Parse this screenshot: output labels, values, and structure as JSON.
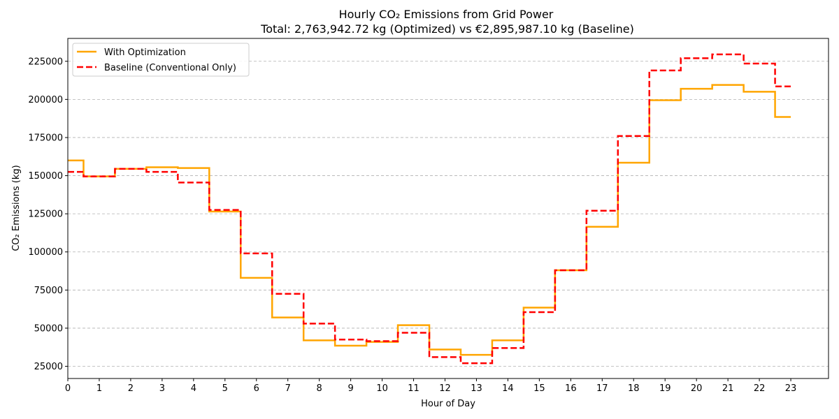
{
  "chart_data": {
    "type": "line",
    "title": "Hourly CO₂ Emissions from Grid Power",
    "subtitle": "Total: 2,763,942.72 kg (Optimized) vs €2,895,987.10 kg (Baseline)",
    "xlabel": "Hour of Day",
    "ylabel": "CO₂ Emissions (kg)",
    "x": [
      0,
      1,
      2,
      3,
      4,
      5,
      6,
      7,
      8,
      9,
      10,
      11,
      12,
      13,
      14,
      15,
      16,
      17,
      18,
      19,
      20,
      21,
      22,
      23
    ],
    "xlim": [
      0,
      24.2
    ],
    "ylim": [
      17000,
      240000
    ],
    "yticks": [
      25000,
      50000,
      75000,
      100000,
      125000,
      150000,
      175000,
      200000,
      225000
    ],
    "grid": "y-dashed",
    "legend_position": "top-left",
    "series": [
      {
        "name": "With Optimization",
        "color": "#FFA500",
        "style": "solid",
        "values": [
          160000,
          149500,
          154500,
          155500,
          155000,
          126500,
          83000,
          57000,
          42000,
          38500,
          41000,
          52000,
          36000,
          32500,
          42000,
          63500,
          88000,
          116500,
          158500,
          199500,
          207000,
          209500,
          205000,
          188500
        ]
      },
      {
        "name": "Baseline (Conventional Only)",
        "color": "#FF0000",
        "style": "dashed",
        "values": [
          152500,
          149500,
          154500,
          152500,
          145500,
          127500,
          99000,
          72500,
          53000,
          42500,
          41500,
          47000,
          31000,
          27000,
          37000,
          60500,
          88000,
          127000,
          176000,
          219000,
          227000,
          229500,
          223500,
          208500
        ]
      }
    ]
  }
}
